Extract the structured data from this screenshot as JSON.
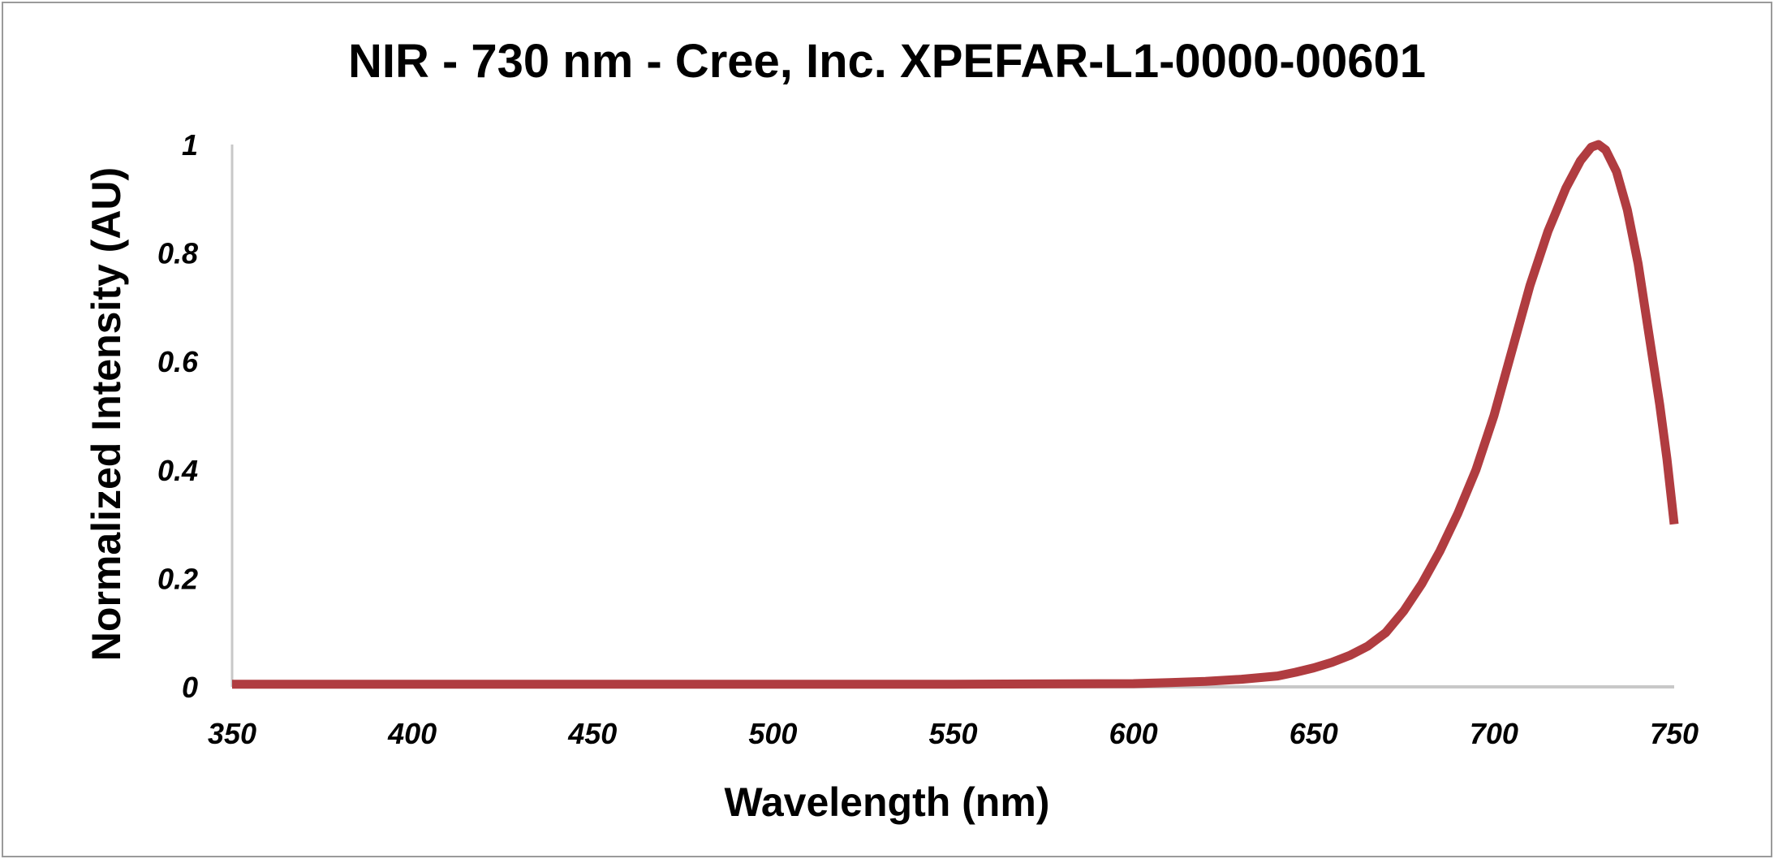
{
  "chart_data": {
    "type": "line",
    "title": "NIR  - 730 nm - Cree, Inc. XPEFAR-L1-0000-00601",
    "xlabel": "Wavelength (nm)",
    "ylabel": "Normalized Intensity (AU)",
    "xlim": [
      350,
      750
    ],
    "ylim": [
      0,
      1
    ],
    "xticks": [
      "350",
      "400",
      "450",
      "500",
      "550",
      "600",
      "650",
      "700",
      "750"
    ],
    "yticks": [
      "0",
      "0.2",
      "0.4",
      "0.6",
      "0.8",
      "1"
    ],
    "grid": false,
    "legend": "none",
    "line_color": "#b03c40",
    "series": [
      {
        "x": [
          350,
          400,
          450,
          500,
          550,
          600,
          610,
          620,
          630,
          640,
          645,
          650,
          655,
          660,
          665,
          670,
          675,
          680,
          685,
          690,
          695,
          700,
          705,
          710,
          715,
          720,
          724,
          727,
          729,
          731,
          734,
          737,
          740,
          743,
          746,
          748,
          750
        ],
        "y": [
          0.005,
          0.005,
          0.005,
          0.005,
          0.005,
          0.006,
          0.008,
          0.01,
          0.014,
          0.02,
          0.027,
          0.035,
          0.045,
          0.058,
          0.075,
          0.1,
          0.14,
          0.19,
          0.25,
          0.32,
          0.4,
          0.5,
          0.62,
          0.74,
          0.84,
          0.92,
          0.97,
          0.995,
          1.0,
          0.99,
          0.95,
          0.88,
          0.78,
          0.65,
          0.52,
          0.42,
          0.3
        ]
      }
    ]
  }
}
